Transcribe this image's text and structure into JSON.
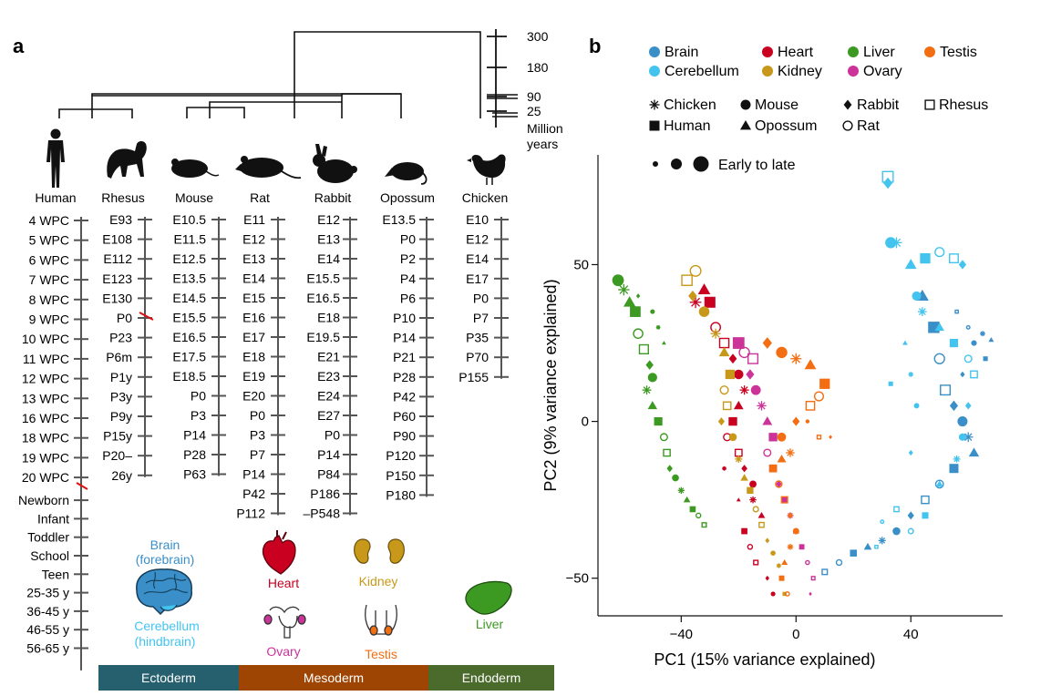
{
  "panels": {
    "a": "a",
    "b": "b"
  },
  "tree": {
    "scale_ticks": [
      "300",
      "180",
      "90",
      "25"
    ],
    "scale_unit_line1": "Million",
    "scale_unit_line2": "years"
  },
  "species": [
    {
      "name": "Human",
      "stages": [
        "4 WPC",
        "5 WPC",
        "6 WPC",
        "7 WPC",
        "8 WPC",
        "9 WPC",
        "10 WPC",
        "11 WPC",
        "12 WPC",
        "13 WPC",
        "16 WPC",
        "18 WPC",
        "19 WPC",
        "20 WPC",
        "Newborn",
        "Infant",
        "Toddler",
        "School",
        "Teen",
        "25-35 y",
        "36-45 y",
        "46-55 y",
        "56-65 y"
      ]
    },
    {
      "name": "Rhesus",
      "stages": [
        "E93",
        "E108",
        "E112",
        "E123",
        "E130",
        "P0",
        "P23",
        "P6m",
        "P1y",
        "P3y",
        "P9y",
        "P15y",
        "P20–",
        "26y"
      ]
    },
    {
      "name": "Mouse",
      "stages": [
        "E10.5",
        "E11.5",
        "E12.5",
        "E13.5",
        "E14.5",
        "E15.5",
        "E16.5",
        "E17.5",
        "E18.5",
        "P0",
        "P3",
        "P14",
        "P28",
        "P63"
      ]
    },
    {
      "name": "Rat",
      "stages": [
        "E11",
        "E12",
        "E13",
        "E14",
        "E15",
        "E16",
        "E17",
        "E18",
        "E19",
        "E20",
        "P0",
        "P3",
        "P7",
        "P14",
        "P42",
        "P112"
      ]
    },
    {
      "name": "Rabbit",
      "stages": [
        "E12",
        "E13",
        "E14",
        "E15.5",
        "E16.5",
        "E18",
        "E19.5",
        "E21",
        "E23",
        "E24",
        "E27",
        "P0",
        "P14",
        "P84",
        "P186",
        "–P548"
      ]
    },
    {
      "name": "Opossum",
      "stages": [
        "E13.5",
        "P0",
        "P2",
        "P4",
        "P6",
        "P10",
        "P14",
        "P21",
        "P28",
        "P42",
        "P60",
        "P90",
        "P120",
        "P150",
        "P180"
      ]
    },
    {
      "name": "Chicken",
      "stages": [
        "E10",
        "E12",
        "E14",
        "E17",
        "P0",
        "P7",
        "P35",
        "P70",
        "P155"
      ]
    }
  ],
  "organs": {
    "brain": "Brain",
    "brain_sub": "(forebrain)",
    "cerebellum": "Cerebellum",
    "cerebellum_sub": "(hindbrain)",
    "heart": "Heart",
    "kidney": "Kidney",
    "ovary": "Ovary",
    "testis": "Testis",
    "liver": "Liver"
  },
  "germ_layers": [
    "Ectoderm",
    "Mesoderm",
    "Endoderm"
  ],
  "colors": {
    "brain": "#3a8fc8",
    "cerebellum": "#43c4ef",
    "heart": "#c9001f",
    "kidney": "#c8981a",
    "liver": "#3c9a22",
    "ovary": "#cc3399",
    "testis": "#f36e12",
    "ectoderm": "#265f6e",
    "mesoderm": "#9e4504",
    "endoderm": "#4b6b2d"
  },
  "legend": {
    "organs": [
      "Brain",
      "Heart",
      "Liver",
      "Testis",
      "Cerebellum",
      "Kidney",
      "Ovary"
    ],
    "species": [
      "Chicken",
      "Mouse",
      "Rabbit",
      "Rhesus",
      "Human",
      "Opossum",
      "Rat"
    ],
    "size_label": "Early to late"
  },
  "chart_data": {
    "type": "scatter",
    "xlabel": "PC1 (15% variance explained)",
    "ylabel": "PC2 (9% variance explained)",
    "xticks": [
      -40,
      0,
      40
    ],
    "yticks": [
      -50,
      0,
      50
    ],
    "xlim": [
      -69,
      72
    ],
    "ylim": [
      -62,
      85
    ],
    "marker_size_meaning": "developmental stage, early to late",
    "series": [
      {
        "name": "Brain",
        "color": "#3a8fc8",
        "points": [
          [
            44,
            40
          ],
          [
            48,
            30
          ],
          [
            50,
            20
          ],
          [
            52,
            10
          ],
          [
            55,
            5
          ],
          [
            58,
            0
          ],
          [
            60,
            -5
          ],
          [
            62,
            -10
          ],
          [
            55,
            -15
          ],
          [
            50,
            -20
          ],
          [
            45,
            -25
          ],
          [
            40,
            -30
          ],
          [
            35,
            -35
          ],
          [
            30,
            -38
          ],
          [
            25,
            -40
          ],
          [
            20,
            -42
          ],
          [
            15,
            -45
          ],
          [
            10,
            -48
          ],
          [
            58,
            15
          ],
          [
            62,
            25
          ],
          [
            65,
            28
          ],
          [
            68,
            26
          ],
          [
            66,
            20
          ],
          [
            60,
            30
          ],
          [
            56,
            35
          ]
        ]
      },
      {
        "name": "Cerebellum",
        "color": "#43c4ef",
        "points": [
          [
            32,
            78
          ],
          [
            32,
            76
          ],
          [
            33,
            57
          ],
          [
            35,
            57
          ],
          [
            40,
            50
          ],
          [
            45,
            52
          ],
          [
            50,
            54
          ],
          [
            55,
            52
          ],
          [
            58,
            50
          ],
          [
            42,
            40
          ],
          [
            44,
            35
          ],
          [
            50,
            30
          ],
          [
            55,
            25
          ],
          [
            60,
            20
          ],
          [
            62,
            15
          ],
          [
            60,
            5
          ],
          [
            58,
            -5
          ],
          [
            56,
            -12
          ],
          [
            50,
            -20
          ],
          [
            45,
            -30
          ],
          [
            40,
            -35
          ],
          [
            35,
            -28
          ],
          [
            40,
            -10
          ],
          [
            42,
            5
          ],
          [
            40,
            15
          ],
          [
            38,
            25
          ],
          [
            33,
            12
          ],
          [
            30,
            -32
          ],
          [
            28,
            -40
          ]
        ]
      },
      {
        "name": "Heart",
        "color": "#c9001f",
        "points": [
          [
            -35,
            38
          ],
          [
            -32,
            42
          ],
          [
            -30,
            38
          ],
          [
            -28,
            30
          ],
          [
            -25,
            25
          ],
          [
            -22,
            20
          ],
          [
            -20,
            15
          ],
          [
            -18,
            10
          ],
          [
            -20,
            5
          ],
          [
            -22,
            0
          ],
          [
            -24,
            -5
          ],
          [
            -20,
            -10
          ],
          [
            -18,
            -15
          ],
          [
            -15,
            -20
          ],
          [
            -15,
            -25
          ],
          [
            -12,
            -30
          ],
          [
            -18,
            -35
          ],
          [
            -16,
            -40
          ],
          [
            -14,
            -45
          ],
          [
            -10,
            -50
          ],
          [
            -8,
            -55
          ],
          [
            -25,
            -15
          ],
          [
            -20,
            -25
          ]
        ]
      },
      {
        "name": "Kidney",
        "color": "#c8981a",
        "points": [
          [
            -35,
            48
          ],
          [
            -38,
            45
          ],
          [
            -36,
            40
          ],
          [
            -32,
            35
          ],
          [
            -28,
            28
          ],
          [
            -25,
            22
          ],
          [
            -23,
            15
          ],
          [
            -25,
            10
          ],
          [
            -24,
            5
          ],
          [
            -26,
            0
          ],
          [
            -22,
            -5
          ],
          [
            -20,
            -12
          ],
          [
            -18,
            -18
          ],
          [
            -16,
            -22
          ],
          [
            -14,
            -28
          ],
          [
            -12,
            -33
          ],
          [
            -10,
            -38
          ],
          [
            -8,
            -42
          ],
          [
            -6,
            -46
          ],
          [
            -5,
            -50
          ],
          [
            -4,
            -55
          ]
        ]
      },
      {
        "name": "Liver",
        "color": "#3c9a22",
        "points": [
          [
            -62,
            45
          ],
          [
            -60,
            42
          ],
          [
            -58,
            38
          ],
          [
            -56,
            35
          ],
          [
            -55,
            28
          ],
          [
            -53,
            23
          ],
          [
            -51,
            18
          ],
          [
            -50,
            14
          ],
          [
            -52,
            10
          ],
          [
            -50,
            5
          ],
          [
            -48,
            0
          ],
          [
            -46,
            -5
          ],
          [
            -45,
            -10
          ],
          [
            -44,
            -15
          ],
          [
            -42,
            -18
          ],
          [
            -40,
            -22
          ],
          [
            -38,
            -25
          ],
          [
            -36,
            -28
          ],
          [
            -34,
            -30
          ],
          [
            -32,
            -33
          ],
          [
            -55,
            40
          ],
          [
            -50,
            35
          ],
          [
            -48,
            30
          ],
          [
            -46,
            25
          ]
        ]
      },
      {
        "name": "Ovary",
        "color": "#cc3399",
        "points": [
          [
            -20,
            25
          ],
          [
            -18,
            22
          ],
          [
            -15,
            20
          ],
          [
            -16,
            15
          ],
          [
            -14,
            10
          ],
          [
            -12,
            5
          ],
          [
            -10,
            0
          ],
          [
            -8,
            -5
          ],
          [
            -10,
            -10
          ],
          [
            -8,
            -15
          ],
          [
            -6,
            -20
          ],
          [
            -4,
            -25
          ],
          [
            -2,
            -30
          ],
          [
            0,
            -35
          ],
          [
            2,
            -40
          ],
          [
            4,
            -45
          ],
          [
            6,
            -50
          ],
          [
            5,
            -55
          ]
        ]
      },
      {
        "name": "Testis",
        "color": "#f36e12",
        "points": [
          [
            -10,
            25
          ],
          [
            -5,
            22
          ],
          [
            0,
            20
          ],
          [
            5,
            18
          ],
          [
            10,
            12
          ],
          [
            8,
            8
          ],
          [
            5,
            5
          ],
          [
            0,
            0
          ],
          [
            -5,
            -5
          ],
          [
            -2,
            -10
          ],
          [
            -5,
            -12
          ],
          [
            -8,
            -15
          ],
          [
            -6,
            -20
          ],
          [
            -4,
            -25
          ],
          [
            -2,
            -30
          ],
          [
            0,
            -35
          ],
          [
            -2,
            -40
          ],
          [
            -4,
            -45
          ],
          [
            -5,
            -50
          ],
          [
            -3,
            -55
          ],
          [
            8,
            -5
          ],
          [
            12,
            -5
          ],
          [
            4,
            0
          ]
        ]
      }
    ]
  }
}
